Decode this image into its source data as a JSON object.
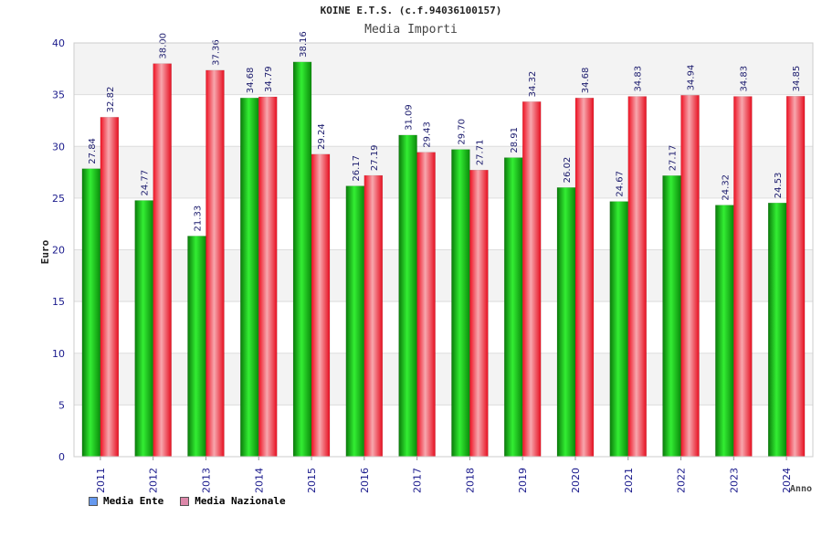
{
  "chart_data": {
    "type": "bar",
    "title": "KOINE E.T.S. (c.f.94036100157)",
    "subtitle": "Media Importi",
    "xlabel": "Anno",
    "ylabel": "Euro",
    "ylim": [
      0,
      40
    ],
    "yticks": [
      "0",
      "5",
      "10",
      "15",
      "20",
      "25",
      "30",
      "35",
      "40"
    ],
    "grid": true,
    "legend_position": "bottom-left",
    "categories": [
      "2011",
      "2012",
      "2013",
      "2014",
      "2015",
      "2016",
      "2017",
      "2018",
      "2019",
      "2020",
      "2021",
      "2022",
      "2023",
      "2024"
    ],
    "series": [
      {
        "name": "Media Ente",
        "color": "#00b000",
        "legend_color": "#6699ee",
        "values": [
          27.84,
          24.77,
          21.33,
          34.68,
          38.16,
          26.17,
          31.09,
          29.7,
          28.91,
          26.02,
          24.67,
          27.17,
          24.32,
          24.53
        ],
        "labels": [
          "27.84",
          "24.77",
          "21.33",
          "34.68",
          "38.16",
          "26.17",
          "31.09",
          "29.70",
          "28.91",
          "26.02",
          "24.67",
          "27.17",
          "24.32",
          "24.53"
        ]
      },
      {
        "name": "Media Nazionale",
        "color": "#ee1122",
        "legend_color": "#dd88aa",
        "values": [
          32.82,
          38.0,
          37.36,
          34.79,
          29.24,
          27.19,
          29.43,
          27.71,
          34.32,
          34.68,
          34.83,
          34.94,
          34.83,
          34.85
        ],
        "labels": [
          "32.82",
          "38.00",
          "37.36",
          "34.79",
          "29.24",
          "27.19",
          "29.43",
          "27.71",
          "34.32",
          "34.68",
          "34.83",
          "34.94",
          "34.83",
          "34.85"
        ]
      }
    ]
  }
}
